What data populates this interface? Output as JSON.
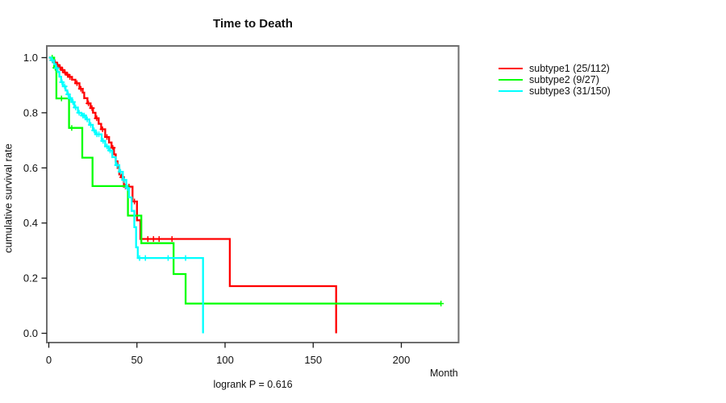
{
  "figure": {
    "title": "Time to Death",
    "x_label": "Month",
    "y_label": "cumulative survival rate",
    "footer": "logrank P = 0.616"
  },
  "chart_data": {
    "type": "line",
    "variant": "kaplan-meier-step",
    "title": "Time to Death",
    "xlabel": "Month",
    "ylabel": "cumulative survival rate",
    "xlim": [
      0,
      232
    ],
    "ylim": [
      0.0,
      1.0
    ],
    "x_ticks": [
      "0",
      "50",
      "100",
      "150",
      "200"
    ],
    "x_tick_values": [
      0,
      50,
      100,
      150,
      200
    ],
    "y_ticks": [
      "0.0",
      "0.2",
      "0.4",
      "0.6",
      "0.8",
      "1.0"
    ],
    "y_tick_values": [
      0.0,
      0.2,
      0.4,
      0.6,
      0.8,
      1.0
    ],
    "grid": false,
    "legend_position": "right-outside",
    "annotation": "logrank P = 0.616",
    "series": [
      {
        "name": "subtype1 (25/112)",
        "color": "#ff0000",
        "steps": [
          [
            0,
            1.0
          ],
          [
            1.4,
            0.991
          ],
          [
            3.2,
            0.982
          ],
          [
            4.6,
            0.973
          ],
          [
            5.9,
            0.964
          ],
          [
            7.3,
            0.955
          ],
          [
            8.7,
            0.946
          ],
          [
            10,
            0.938
          ],
          [
            11.4,
            0.93
          ],
          [
            13.2,
            0.92
          ],
          [
            15.1,
            0.907
          ],
          [
            17.4,
            0.887
          ],
          [
            19.2,
            0.873
          ],
          [
            20.1,
            0.853
          ],
          [
            21.9,
            0.834
          ],
          [
            23.7,
            0.817
          ],
          [
            25.1,
            0.8
          ],
          [
            26.5,
            0.78
          ],
          [
            28.3,
            0.76
          ],
          [
            29.7,
            0.74
          ],
          [
            32,
            0.712
          ],
          [
            34.2,
            0.692
          ],
          [
            35.6,
            0.673
          ],
          [
            37,
            0.649
          ],
          [
            38,
            0.624
          ],
          [
            39,
            0.6
          ],
          [
            40,
            0.576
          ],
          [
            41,
            0.566
          ],
          [
            42.6,
            0.532
          ],
          [
            47.5,
            0.478
          ],
          [
            50,
            0.41
          ],
          [
            52,
            0.342
          ],
          [
            102.7,
            0.171
          ],
          [
            163,
            0.0
          ]
        ],
        "censors": [
          [
            2,
            0.991
          ],
          [
            3.6,
            0.982
          ],
          [
            5,
            0.973
          ],
          [
            6.4,
            0.964
          ],
          [
            7.8,
            0.955
          ],
          [
            9.2,
            0.946
          ],
          [
            10.6,
            0.938
          ],
          [
            12,
            0.93
          ],
          [
            16,
            0.907
          ],
          [
            18.2,
            0.887
          ],
          [
            22.5,
            0.834
          ],
          [
            24.5,
            0.817
          ],
          [
            27.2,
            0.78
          ],
          [
            30.5,
            0.74
          ],
          [
            33,
            0.712
          ],
          [
            36.3,
            0.673
          ],
          [
            41.6,
            0.566
          ],
          [
            43.5,
            0.532
          ],
          [
            45.5,
            0.532
          ],
          [
            48.6,
            0.478
          ],
          [
            56.2,
            0.342
          ],
          [
            59.4,
            0.342
          ],
          [
            62.6,
            0.342
          ],
          [
            69.9,
            0.342
          ]
        ]
      },
      {
        "name": "subtype2 (9/27)",
        "color": "#00ff00",
        "steps": [
          [
            0,
            1.0
          ],
          [
            3,
            0.963
          ],
          [
            4.3,
            0.852
          ],
          [
            11.5,
            0.745
          ],
          [
            19,
            0.637
          ],
          [
            24.8,
            0.534
          ],
          [
            44.9,
            0.427
          ],
          [
            52.5,
            0.327
          ],
          [
            70.8,
            0.215
          ],
          [
            77.6,
            0.108
          ],
          [
            222.5,
            0.108
          ]
        ],
        "censors": [
          [
            1.9,
            1.0
          ],
          [
            3.7,
            0.963
          ],
          [
            7.2,
            0.852
          ],
          [
            13,
            0.745
          ],
          [
            222.5,
            0.108
          ]
        ]
      },
      {
        "name": "subtype3 (31/150)",
        "color": "#00ffff",
        "steps": [
          [
            0,
            1.0
          ],
          [
            1.5,
            0.99
          ],
          [
            3,
            0.976
          ],
          [
            4,
            0.962
          ],
          [
            5,
            0.948
          ],
          [
            6,
            0.931
          ],
          [
            7,
            0.911
          ],
          [
            8,
            0.896
          ],
          [
            9.5,
            0.881
          ],
          [
            10.5,
            0.867
          ],
          [
            11.5,
            0.853
          ],
          [
            13,
            0.839
          ],
          [
            14.5,
            0.819
          ],
          [
            16.5,
            0.8
          ],
          [
            18.5,
            0.79
          ],
          [
            21,
            0.776
          ],
          [
            23,
            0.756
          ],
          [
            25,
            0.736
          ],
          [
            26.5,
            0.722
          ],
          [
            30,
            0.698
          ],
          [
            32,
            0.678
          ],
          [
            34,
            0.663
          ],
          [
            36,
            0.639
          ],
          [
            38,
            0.61
          ],
          [
            40,
            0.586
          ],
          [
            42,
            0.556
          ],
          [
            44,
            0.527
          ],
          [
            45.5,
            0.493
          ],
          [
            47,
            0.444
          ],
          [
            48.5,
            0.385
          ],
          [
            49.5,
            0.312
          ],
          [
            50.5,
            0.273
          ],
          [
            87.5,
            0.0
          ]
        ],
        "censors": [
          [
            2,
            0.99
          ],
          [
            4.5,
            0.962
          ],
          [
            7.5,
            0.911
          ],
          [
            9,
            0.896
          ],
          [
            11,
            0.867
          ],
          [
            12.2,
            0.853
          ],
          [
            13.7,
            0.839
          ],
          [
            15.2,
            0.819
          ],
          [
            17.2,
            0.8
          ],
          [
            19.3,
            0.79
          ],
          [
            20.1,
            0.79
          ],
          [
            21.8,
            0.776
          ],
          [
            23.8,
            0.756
          ],
          [
            25.7,
            0.736
          ],
          [
            27.3,
            0.722
          ],
          [
            28.4,
            0.722
          ],
          [
            30.8,
            0.698
          ],
          [
            33,
            0.678
          ],
          [
            34.8,
            0.663
          ],
          [
            38.7,
            0.61
          ],
          [
            40.7,
            0.586
          ],
          [
            42.7,
            0.556
          ],
          [
            44.6,
            0.527
          ],
          [
            51.5,
            0.273
          ],
          [
            54.8,
            0.273
          ],
          [
            67.7,
            0.273
          ],
          [
            77.6,
            0.273
          ]
        ]
      }
    ]
  }
}
